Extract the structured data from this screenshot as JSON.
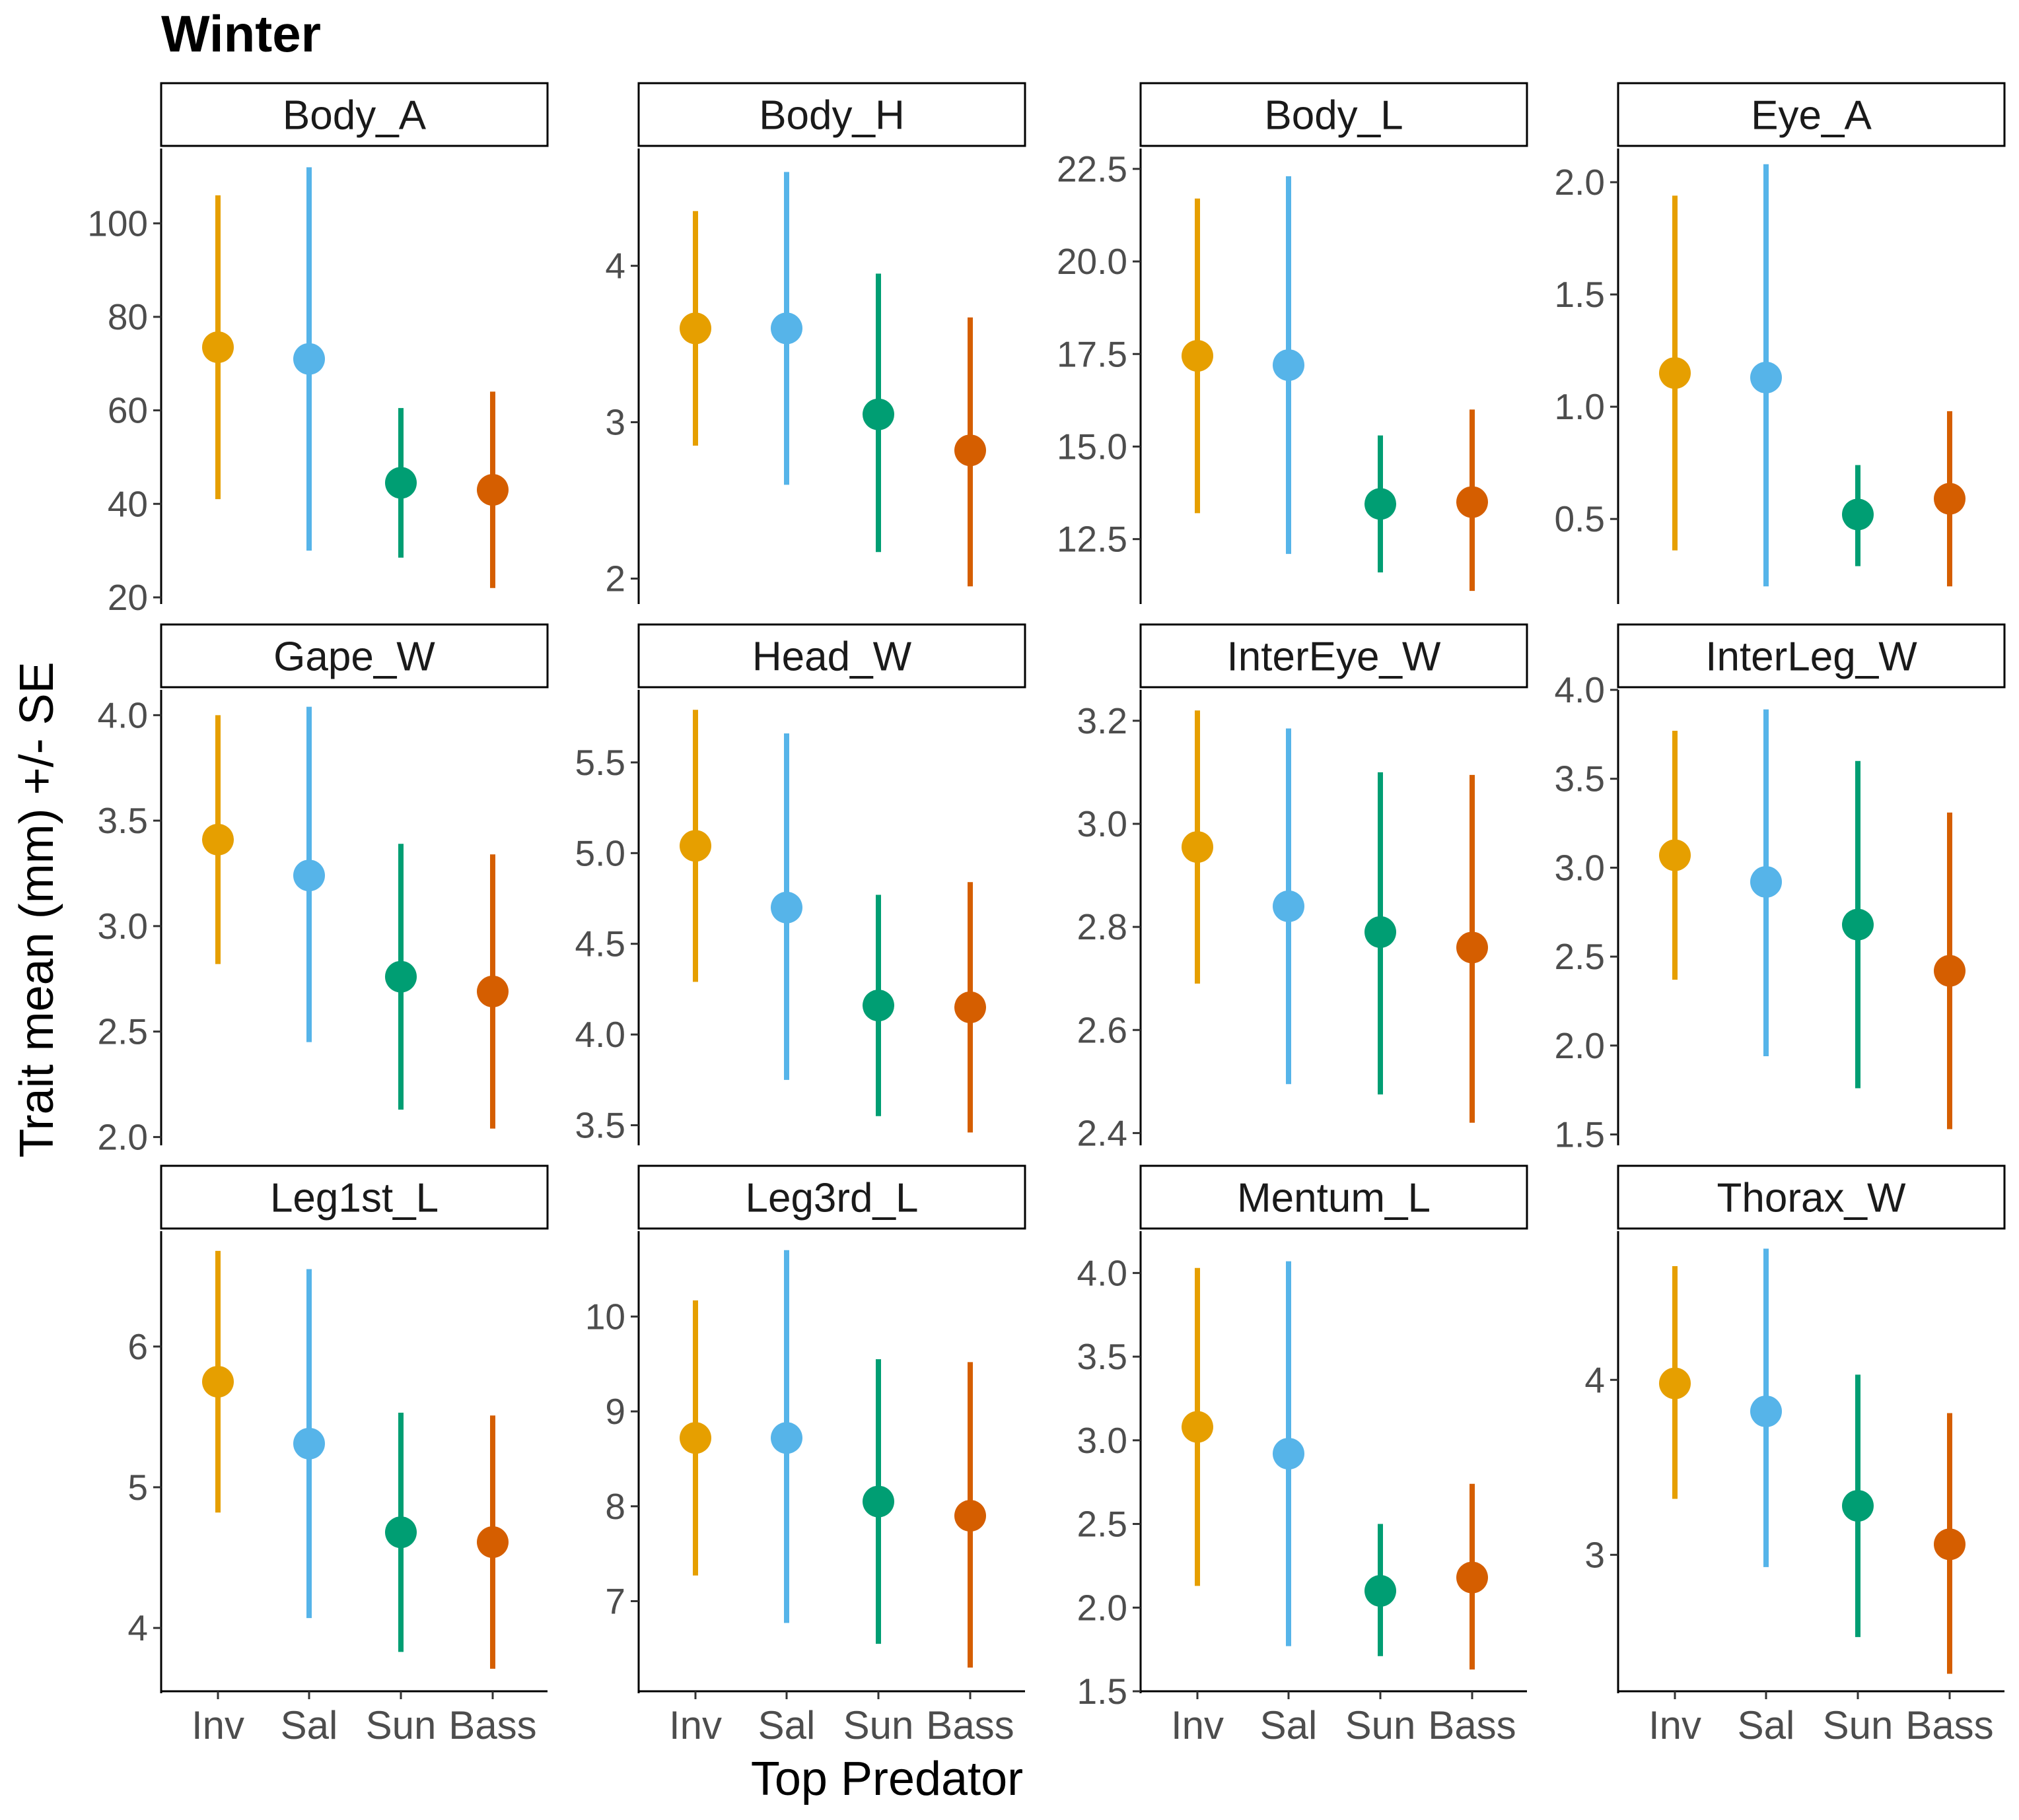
{
  "figure": {
    "title": "Winter",
    "xlabel": "Top Predator",
    "ylabel": "Trait mean (mm) +/- SE"
  },
  "colors": {
    "Inv": "#E69F00",
    "Sal": "#56B4E9",
    "Sun": "#009E73",
    "Bass": "#D55E00",
    "axis": "#000000",
    "tick_label": "#4D4D4D"
  },
  "chart_data": {
    "type": "scatter",
    "subtype": "point-errorbar",
    "grid": false,
    "legend": "none",
    "categories": [
      "Inv",
      "Sal",
      "Sun",
      "Bass"
    ],
    "panels": [
      {
        "name": "Body_A",
        "ylim": [
          19,
          116
        ],
        "yticks": [
          20,
          40,
          60,
          80,
          100
        ],
        "ytick_labels": [
          "20",
          "40",
          "60",
          "80",
          "100"
        ],
        "mean": [
          73.5,
          71,
          44.5,
          43
        ],
        "lower": [
          41,
          30,
          28.5,
          22
        ],
        "upper": [
          106,
          112,
          60.5,
          64
        ]
      },
      {
        "name": "Body_H",
        "ylim": [
          1.85,
          4.75
        ],
        "yticks": [
          2,
          3,
          4
        ],
        "ytick_labels": [
          "2",
          "3",
          "4"
        ],
        "mean": [
          3.6,
          3.6,
          3.05,
          2.82
        ],
        "lower": [
          2.85,
          2.6,
          2.17,
          1.95
        ],
        "upper": [
          4.35,
          4.6,
          3.95,
          3.67
        ]
      },
      {
        "name": "Body_L",
        "ylim": [
          10.8,
          23.05
        ],
        "yticks": [
          12.5,
          15.0,
          17.5,
          20.0,
          22.5
        ],
        "ytick_labels": [
          "12.5",
          "15.0",
          "17.5",
          "20.0",
          "22.5"
        ],
        "mean": [
          17.45,
          17.2,
          13.45,
          13.5
        ],
        "lower": [
          13.2,
          12.1,
          11.6,
          11.1
        ],
        "upper": [
          21.7,
          22.3,
          15.3,
          16.0
        ]
      },
      {
        "name": "Eye_A",
        "ylim": [
          0.13,
          2.15
        ],
        "yticks": [
          0.5,
          1.0,
          1.5,
          2.0
        ],
        "ytick_labels": [
          "0.5",
          "1.0",
          "1.5",
          "2.0"
        ],
        "mean": [
          1.15,
          1.13,
          0.52,
          0.59
        ],
        "lower": [
          0.36,
          0.2,
          0.29,
          0.2
        ],
        "upper": [
          1.94,
          2.08,
          0.74,
          0.98
        ]
      },
      {
        "name": "Gape_W",
        "ylim": [
          1.97,
          4.12
        ],
        "yticks": [
          2.0,
          2.5,
          3.0,
          3.5,
          4.0
        ],
        "ytick_labels": [
          "2.0",
          "2.5",
          "3.0",
          "3.5",
          "4.0"
        ],
        "mean": [
          3.41,
          3.24,
          2.76,
          2.69
        ],
        "lower": [
          2.82,
          2.45,
          2.13,
          2.04
        ],
        "upper": [
          4.0,
          4.04,
          3.39,
          3.34
        ]
      },
      {
        "name": "Head_W",
        "ylim": [
          3.4,
          5.9
        ],
        "yticks": [
          3.5,
          4.0,
          4.5,
          5.0,
          5.5
        ],
        "ytick_labels": [
          "3.5",
          "4.0",
          "4.5",
          "5.0",
          "5.5"
        ],
        "mean": [
          5.04,
          4.7,
          4.16,
          4.15
        ],
        "lower": [
          4.29,
          3.75,
          3.55,
          3.46
        ],
        "upper": [
          5.79,
          5.66,
          4.77,
          4.84
        ]
      },
      {
        "name": "InterEye_W",
        "ylim": [
          2.38,
          3.26
        ],
        "yticks": [
          2.4,
          2.6,
          2.8,
          3.0,
          3.2
        ],
        "ytick_labels": [
          "2.4",
          "2.6",
          "2.8",
          "3.0",
          "3.2"
        ],
        "mean": [
          2.955,
          2.84,
          2.79,
          2.76
        ],
        "lower": [
          2.69,
          2.495,
          2.475,
          2.42
        ],
        "upper": [
          3.22,
          3.185,
          3.1,
          3.095
        ]
      },
      {
        "name": "InterLeg_W",
        "ylim": [
          1.45,
          4.0
        ],
        "yticks": [
          1.5,
          2.0,
          2.5,
          3.0,
          3.5,
          4.0
        ],
        "ytick_labels": [
          "1.5",
          "2.0",
          "2.5",
          "3.0",
          "3.5",
          "4.0"
        ],
        "mean": [
          3.07,
          2.92,
          2.68,
          2.42
        ],
        "lower": [
          2.37,
          1.94,
          1.76,
          1.53
        ],
        "upper": [
          3.77,
          3.89,
          3.6,
          3.31
        ]
      },
      {
        "name": "Leg1st_L",
        "ylim": [
          3.55,
          6.82
        ],
        "yticks": [
          4,
          5,
          6
        ],
        "ytick_labels": [
          "4",
          "5",
          "6"
        ],
        "mean": [
          5.75,
          5.31,
          4.68,
          4.61
        ],
        "lower": [
          4.82,
          4.07,
          3.83,
          3.71
        ],
        "upper": [
          6.68,
          6.55,
          5.53,
          5.51
        ]
      },
      {
        "name": "Leg3rd_L",
        "ylim": [
          6.05,
          10.9
        ],
        "yticks": [
          7,
          8,
          9,
          10
        ],
        "ytick_labels": [
          "7",
          "8",
          "9",
          "10"
        ],
        "mean": [
          8.72,
          8.72,
          8.05,
          7.9
        ],
        "lower": [
          7.27,
          6.77,
          6.55,
          6.3
        ],
        "upper": [
          10.17,
          10.7,
          9.55,
          9.52
        ]
      },
      {
        "name": "Mentum_L",
        "ylim": [
          1.5,
          4.25
        ],
        "yticks": [
          1.5,
          2.0,
          2.5,
          3.0,
          3.5,
          4.0
        ],
        "ytick_labels": [
          "1.5",
          "2.0",
          "2.5",
          "3.0",
          "3.5",
          "4.0"
        ],
        "mean": [
          3.08,
          2.92,
          2.1,
          2.18
        ],
        "lower": [
          2.13,
          1.77,
          1.71,
          1.63
        ],
        "upper": [
          4.03,
          4.07,
          2.5,
          2.74
        ]
      },
      {
        "name": "Thorax_W",
        "ylim": [
          2.22,
          4.85
        ],
        "yticks": [
          3,
          4
        ],
        "ytick_labels": [
          "3",
          "4"
        ],
        "mean": [
          3.98,
          3.82,
          3.28,
          3.06
        ],
        "lower": [
          3.32,
          2.93,
          2.53,
          2.32
        ],
        "upper": [
          4.65,
          4.75,
          4.03,
          3.81
        ]
      }
    ]
  }
}
